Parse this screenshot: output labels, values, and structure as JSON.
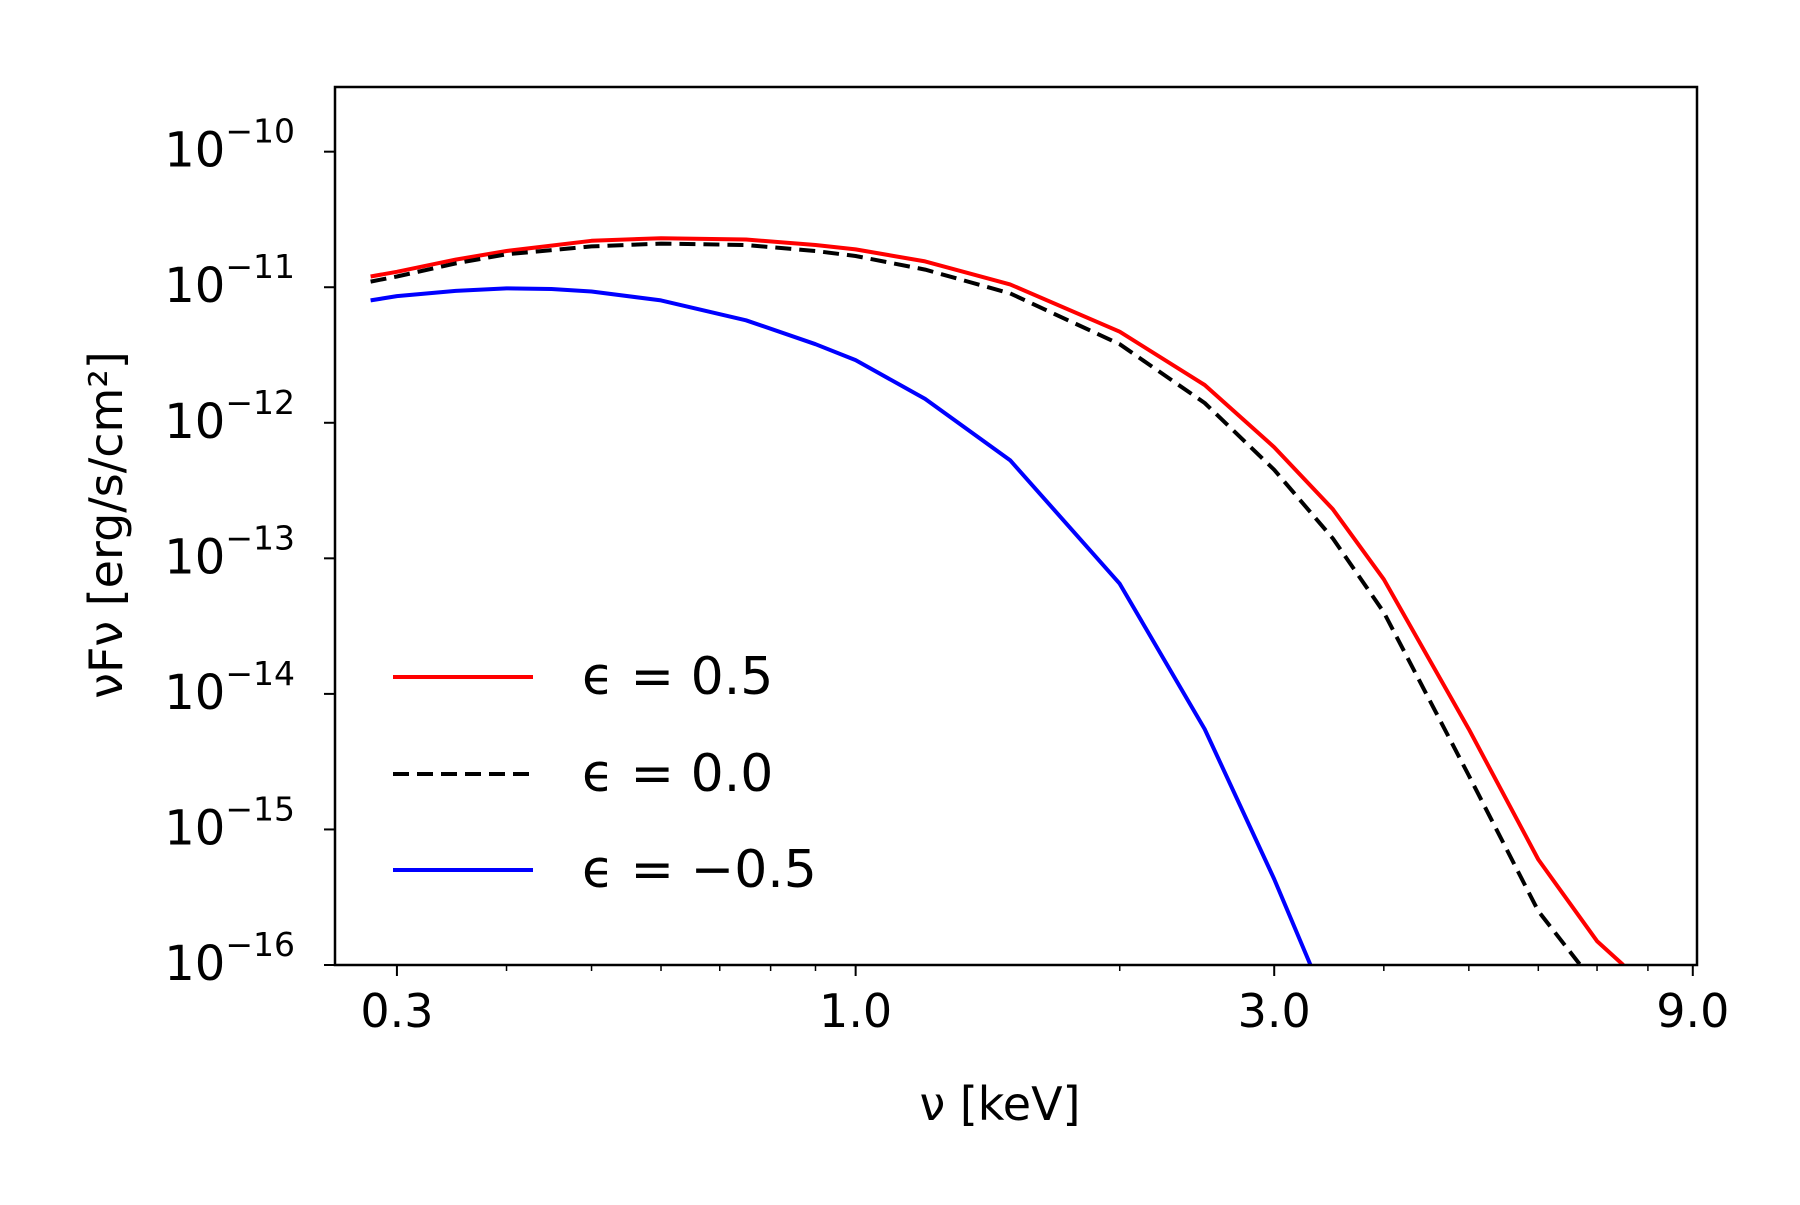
{
  "chart_data": {
    "type": "line",
    "xlabel": "ν  [keV]",
    "ylabel": "νFν  [erg/s/cm²]",
    "xscale": "log",
    "yscale": "log",
    "xlim": [
      0.255,
      9.1
    ],
    "ylim": [
      1e-16,
      3e-10
    ],
    "x_ticks": [
      {
        "value": 0.3,
        "label": "0.3"
      },
      {
        "value": 1.0,
        "label": "1.0"
      },
      {
        "value": 3.0,
        "label": "3.0"
      },
      {
        "value": 9.0,
        "label": "9.0"
      }
    ],
    "y_ticks": [
      {
        "value": 1e-10,
        "base": "10",
        "exp": "−10"
      },
      {
        "value": 1e-11,
        "base": "10",
        "exp": "−11"
      },
      {
        "value": 1e-12,
        "base": "10",
        "exp": "−12"
      },
      {
        "value": 1e-13,
        "base": "10",
        "exp": "−13"
      },
      {
        "value": 1e-14,
        "base": "10",
        "exp": "−14"
      },
      {
        "value": 1e-15,
        "base": "10",
        "exp": "−15"
      },
      {
        "value": 1e-16,
        "base": "10",
        "exp": "−16"
      }
    ],
    "grid": false,
    "legend_position": "lower-left",
    "series": [
      {
        "name": "ϵ = 0.5",
        "color": "#ff0000",
        "dash": "solid",
        "x": [
          0.28,
          0.3,
          0.35,
          0.4,
          0.5,
          0.6,
          0.75,
          0.9,
          1.0,
          1.2,
          1.5,
          2.0,
          2.5,
          3.0,
          3.5,
          4.0,
          5.0,
          6.0,
          7.0,
          7.5
        ],
        "y": [
          1.2e-11,
          1.3e-11,
          1.6e-11,
          1.85e-11,
          2.2e-11,
          2.3e-11,
          2.25e-11,
          2.05e-11,
          1.9e-11,
          1.55e-11,
          1.05e-11,
          4.7e-12,
          1.9e-12,
          6.6e-13,
          2.3e-13,
          7e-14,
          5.5e-15,
          6e-16,
          1.5e-16,
          1e-16
        ]
      },
      {
        "name": "ϵ = 0.0",
        "color": "#000000",
        "dash": "dashed",
        "x": [
          0.28,
          0.3,
          0.35,
          0.4,
          0.5,
          0.6,
          0.75,
          0.9,
          1.0,
          1.2,
          1.5,
          2.0,
          2.5,
          3.0,
          3.5,
          4.0,
          5.0,
          6.0,
          6.7
        ],
        "y": [
          1.1e-11,
          1.2e-11,
          1.5e-11,
          1.75e-11,
          2e-11,
          2.1e-11,
          2.05e-11,
          1.85e-11,
          1.7e-11,
          1.35e-11,
          9e-12,
          3.8e-12,
          1.4e-12,
          4.5e-13,
          1.4e-13,
          4e-14,
          2.5e-15,
          2.5e-16,
          1e-16
        ]
      },
      {
        "name": "ϵ = −0.5",
        "color": "#0000ff",
        "dash": "solid",
        "x": [
          0.28,
          0.3,
          0.35,
          0.4,
          0.45,
          0.5,
          0.6,
          0.75,
          0.9,
          1.0,
          1.2,
          1.5,
          2.0,
          2.5,
          3.0,
          3.3
        ],
        "y": [
          8e-12,
          8.6e-12,
          9.4e-12,
          9.8e-12,
          9.7e-12,
          9.3e-12,
          8e-12,
          5.7e-12,
          3.8e-12,
          2.9e-12,
          1.5e-12,
          5.3e-13,
          6.5e-14,
          5.5e-15,
          4.3e-16,
          1e-16
        ]
      }
    ]
  }
}
